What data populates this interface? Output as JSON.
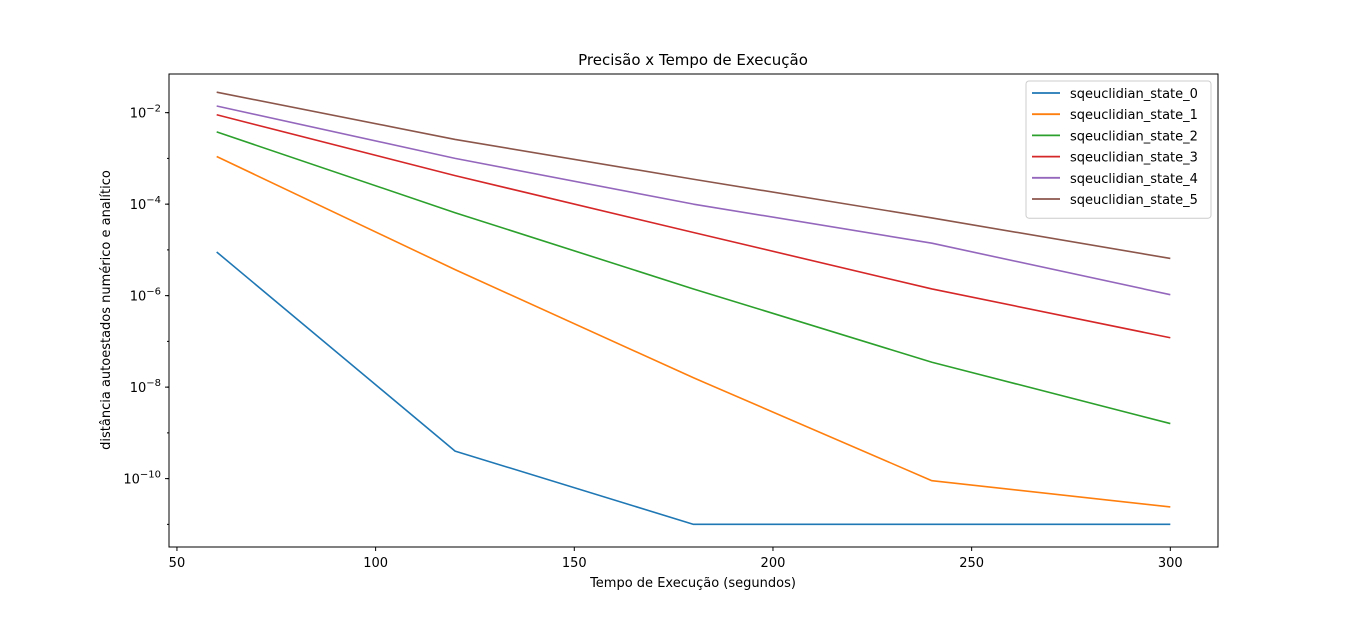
{
  "chart_data": {
    "type": "line",
    "title": "Precisão x Tempo de Execução",
    "xlabel": "Tempo de Execução (segundos)",
    "ylabel": "distância autoestados numérico e analítico",
    "yscale": "log",
    "grid": false,
    "legend_position": "top-right",
    "xlim": [
      48,
      312
    ],
    "ylim": [
      3.2e-12,
      0.07
    ],
    "xticks": [
      50,
      100,
      150,
      200,
      250,
      300
    ],
    "yticks": [
      {
        "value": 0.01,
        "base": "10",
        "exp": "−2"
      },
      {
        "value": 0.0001,
        "base": "10",
        "exp": "−4"
      },
      {
        "value": 1e-06,
        "base": "10",
        "exp": "−6"
      },
      {
        "value": 1e-08,
        "base": "10",
        "exp": "−8"
      },
      {
        "value": 1e-10,
        "base": "10",
        "exp": "−10"
      }
    ],
    "x": [
      60,
      120,
      180,
      240,
      300
    ],
    "series": [
      {
        "name": "sqeuclidian_state_0",
        "color": "#1f77b4",
        "values": [
          9e-06,
          4e-10,
          1e-11,
          1e-11,
          1e-11
        ]
      },
      {
        "name": "sqeuclidian_state_1",
        "color": "#ff7f0e",
        "values": [
          0.0011,
          3.7e-06,
          1.6e-08,
          9e-11,
          2.4e-11
        ]
      },
      {
        "name": "sqeuclidian_state_2",
        "color": "#2ca02c",
        "values": [
          0.0038,
          6.5e-05,
          1.4e-06,
          3.5e-08,
          1.6e-09
        ]
      },
      {
        "name": "sqeuclidian_state_3",
        "color": "#d62728",
        "values": [
          0.009,
          0.00042,
          2.4e-05,
          1.4e-06,
          1.2e-07
        ]
      },
      {
        "name": "sqeuclidian_state_4",
        "color": "#9467bd",
        "values": [
          0.014,
          0.001,
          0.0001,
          1.4e-05,
          1.05e-06
        ]
      },
      {
        "name": "sqeuclidian_state_5",
        "color": "#8c564b",
        "values": [
          0.028,
          0.0026,
          0.00035,
          5e-05,
          6.5e-06
        ]
      }
    ]
  }
}
